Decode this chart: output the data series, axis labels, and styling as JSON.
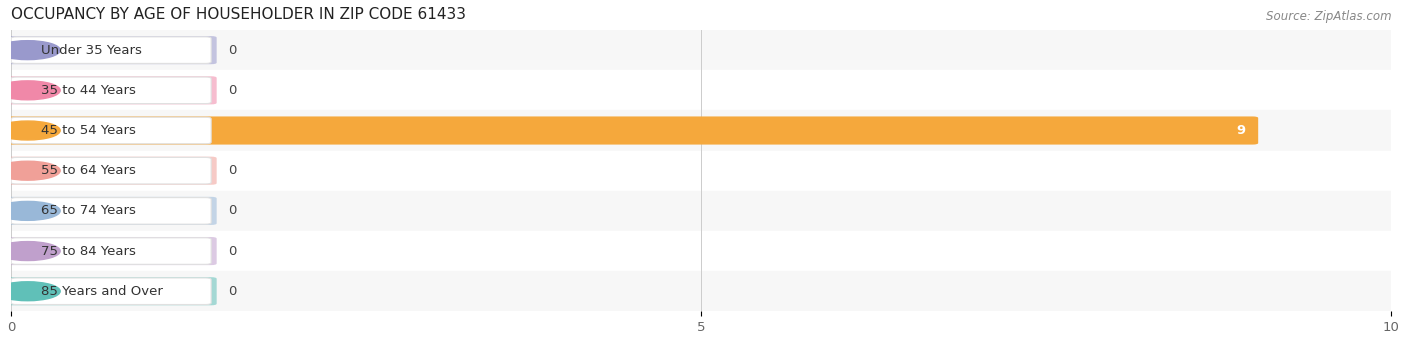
{
  "title": "OCCUPANCY BY AGE OF HOUSEHOLDER IN ZIP CODE 61433",
  "source": "Source: ZipAtlas.com",
  "categories": [
    "Under 35 Years",
    "35 to 44 Years",
    "45 to 54 Years",
    "55 to 64 Years",
    "65 to 74 Years",
    "75 to 84 Years",
    "85 Years and Over"
  ],
  "values": [
    0,
    0,
    9,
    0,
    0,
    0,
    0
  ],
  "bar_colors": [
    "#9999cc",
    "#f088a8",
    "#f5a83c",
    "#f0a098",
    "#99b8d8",
    "#c0a0cc",
    "#60c0b8"
  ],
  "row_bg_even": "#f7f7f7",
  "row_bg_odd": "#ffffff",
  "xlim": [
    0,
    10
  ],
  "xticks": [
    0,
    5,
    10
  ],
  "title_fontsize": 11,
  "label_fontsize": 9.5,
  "tick_fontsize": 9.5,
  "bar_height": 0.62,
  "background_color": "#ffffff",
  "label_box_color": "#ffffff",
  "label_box_border": "#e0e0e0"
}
